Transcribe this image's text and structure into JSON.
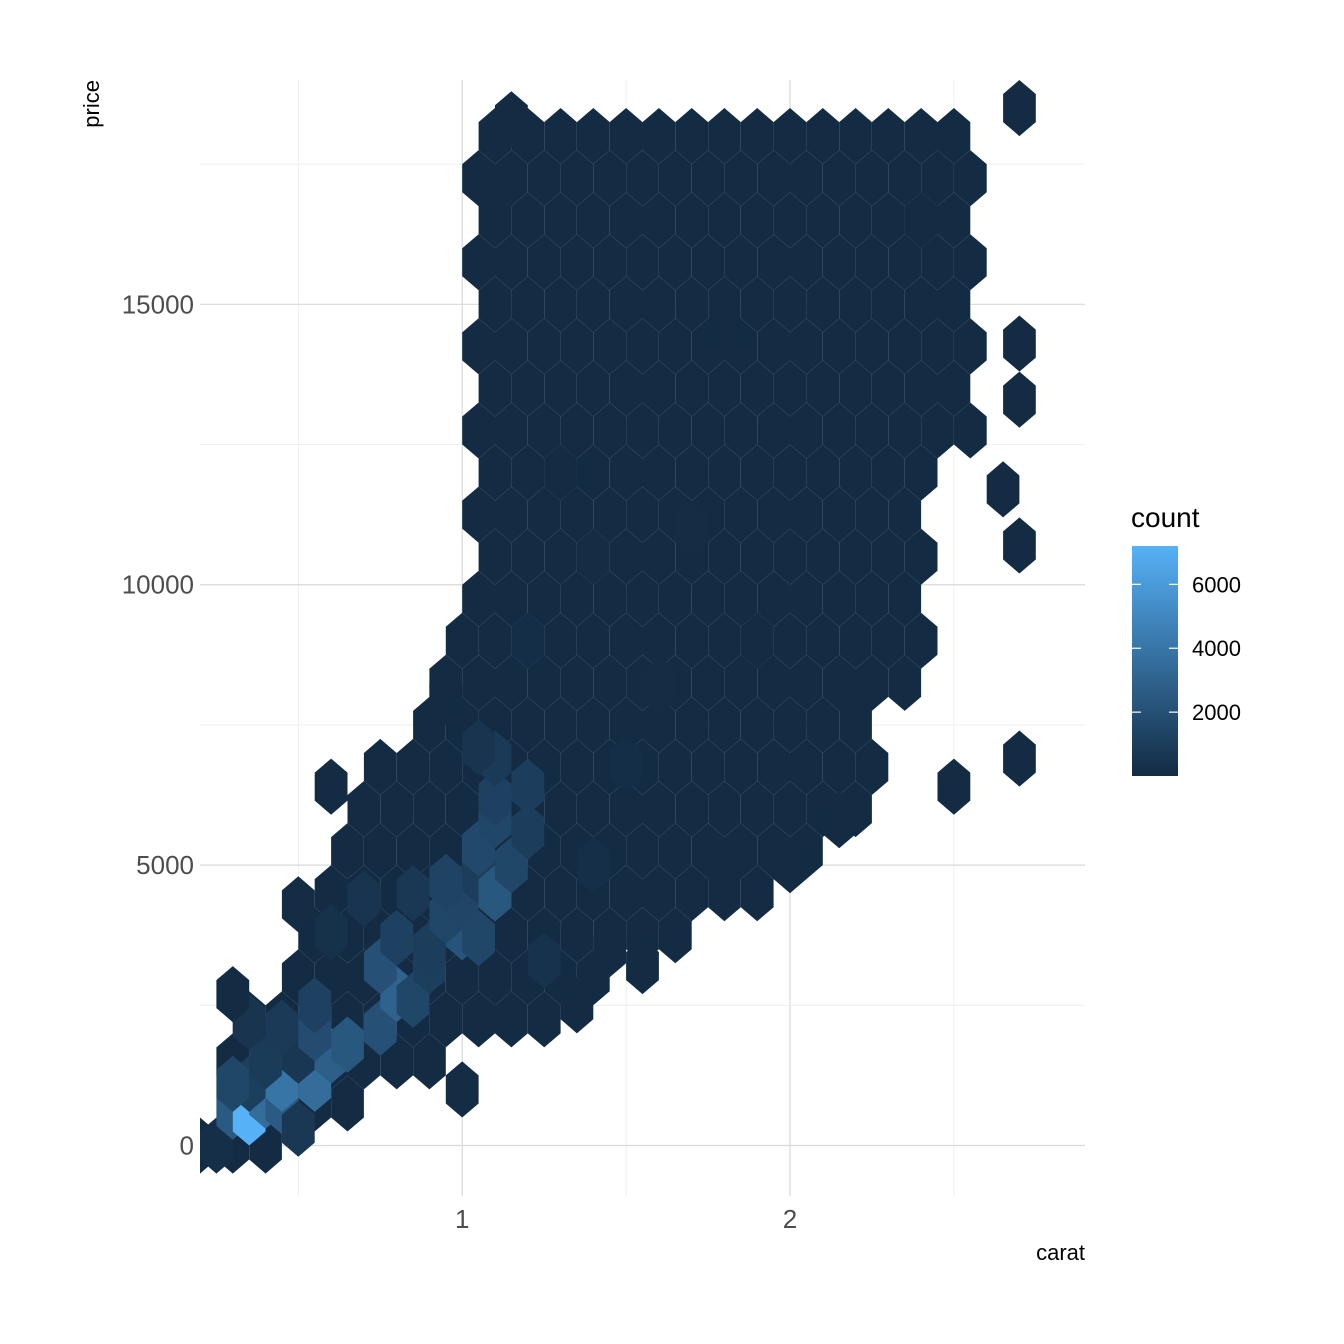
{
  "chart_data": {
    "type": "hexbin",
    "title": "",
    "xlabel": "carat",
    "ylabel": "price",
    "xlim": [
      0.2,
      2.9
    ],
    "ylim": [
      -900,
      19000
    ],
    "x_ticks": [
      1,
      2
    ],
    "x_tick_labels": [
      "1",
      "2"
    ],
    "y_ticks": [
      0,
      5000,
      10000,
      15000
    ],
    "y_tick_labels": [
      "0",
      "5000",
      "10000",
      "15000"
    ],
    "grid": true,
    "legend": {
      "title": "count",
      "position": "right",
      "min": 1,
      "max": 7200,
      "breaks": [
        2000,
        4000,
        6000
      ],
      "break_labels": [
        "2000",
        "4000",
        "6000"
      ],
      "color_low": "#132b43",
      "color_high": "#56b1f7"
    },
    "hex_width_carat": 0.1,
    "hex_height_price": 1000,
    "bins": [
      [
        0.25,
        0,
        200
      ],
      [
        0.3,
        600,
        2500
      ],
      [
        0.35,
        500,
        7200
      ],
      [
        0.4,
        800,
        3500
      ],
      [
        0.45,
        700,
        2600
      ],
      [
        0.5,
        300,
        700
      ],
      [
        0.35,
        1100,
        1100
      ],
      [
        0.45,
        1100,
        4000
      ],
      [
        0.55,
        1100,
        3500
      ],
      [
        0.3,
        1100,
        1500
      ],
      [
        0.4,
        1500,
        900
      ],
      [
        0.5,
        1600,
        600
      ],
      [
        0.6,
        1600,
        2800
      ],
      [
        0.65,
        1800,
        2400
      ],
      [
        0.55,
        2000,
        1800
      ],
      [
        0.35,
        2200,
        500
      ],
      [
        0.45,
        2100,
        800
      ],
      [
        0.3,
        2700,
        50
      ],
      [
        0.55,
        2500,
        1200
      ],
      [
        0.75,
        2100,
        2000
      ],
      [
        0.8,
        2700,
        3000
      ],
      [
        0.75,
        3200,
        2000
      ],
      [
        0.85,
        2600,
        1500
      ],
      [
        0.9,
        3200,
        1100
      ],
      [
        0.8,
        3700,
        1200
      ],
      [
        0.9,
        3500,
        1000
      ],
      [
        1.0,
        3800,
        2200
      ],
      [
        1.05,
        3700,
        1500
      ],
      [
        0.95,
        4100,
        1500
      ],
      [
        1.0,
        4400,
        1400
      ],
      [
        0.95,
        4700,
        1300
      ],
      [
        1.05,
        4800,
        1000
      ],
      [
        1.1,
        4500,
        2400
      ],
      [
        1.05,
        5300,
        1600
      ],
      [
        1.15,
        5000,
        1500
      ],
      [
        1.1,
        5800,
        1500
      ],
      [
        1.2,
        5600,
        1000
      ],
      [
        1.2,
        6400,
        1000
      ],
      [
        1.1,
        6200,
        1200
      ],
      [
        1.1,
        6900,
        800
      ],
      [
        1.05,
        7100,
        500
      ],
      [
        1.0,
        1000,
        60
      ],
      [
        0.6,
        6400,
        30
      ],
      [
        0.95,
        8000,
        40
      ],
      [
        1.55,
        3200,
        30
      ],
      [
        1.45,
        3500,
        40
      ],
      [
        1.35,
        2500,
        30
      ],
      [
        0.5,
        4300,
        100
      ],
      [
        0.6,
        3800,
        300
      ],
      [
        0.7,
        4400,
        500
      ],
      [
        0.85,
        4500,
        700
      ],
      [
        1.25,
        3300,
        400
      ],
      [
        1.4,
        5000,
        200
      ],
      [
        1.5,
        6800,
        150
      ],
      [
        1.6,
        8200,
        100
      ],
      [
        1.4,
        10500,
        100
      ],
      [
        1.2,
        9000,
        150
      ],
      [
        1.3,
        12000,
        50
      ],
      [
        1.7,
        11000,
        60
      ],
      [
        1.9,
        9000,
        40
      ],
      [
        2.2,
        8000,
        30
      ],
      [
        1.8,
        14500,
        30
      ],
      [
        2.4,
        16500,
        20
      ],
      [
        2.7,
        18500,
        5
      ],
      [
        2.7,
        6900,
        5
      ],
      [
        2.5,
        6400,
        5
      ],
      [
        2.7,
        10700,
        5
      ],
      [
        2.65,
        11700,
        5
      ],
      [
        2.7,
        13300,
        5
      ],
      [
        2.7,
        14300,
        5
      ],
      [
        1.15,
        18300,
        10
      ],
      [
        1.1,
        17000,
        10
      ],
      [
        2.0,
        5000,
        10
      ],
      [
        1.8,
        5000,
        10
      ],
      [
        2.15,
        5800,
        10
      ]
    ]
  }
}
